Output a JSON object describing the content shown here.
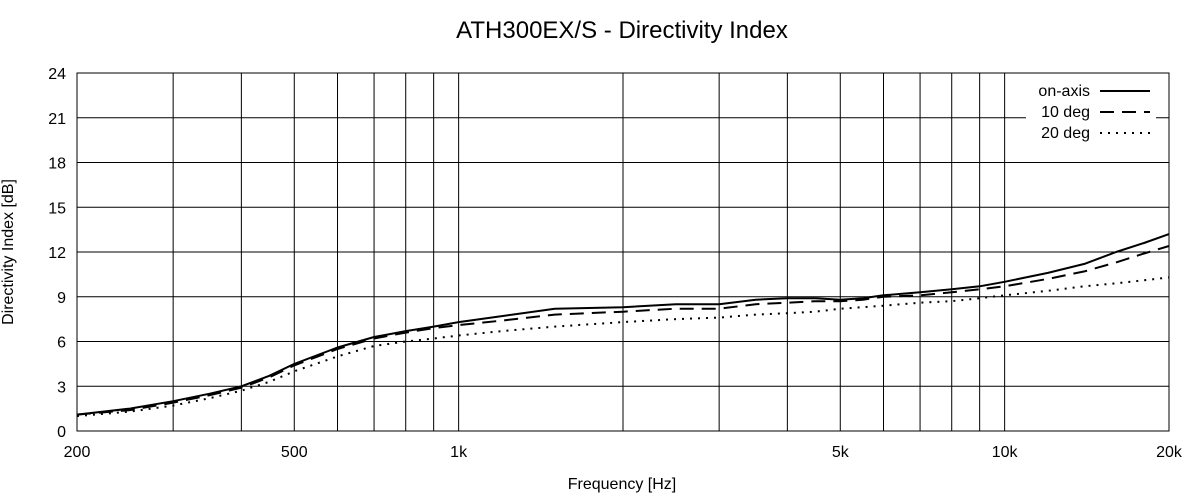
{
  "chart_data": {
    "type": "line",
    "title": "ATH300EX/S - Directivity Index",
    "xlabel": "Frequency [Hz]",
    "ylabel": "Directivity Index [dB]",
    "xscale": "log",
    "xlim": [
      200,
      20000
    ],
    "ylim": [
      0,
      24
    ],
    "grid": true,
    "legend_position": "top-right",
    "x_ticks": [
      {
        "value": 200,
        "label": "200"
      },
      {
        "value": 500,
        "label": "500"
      },
      {
        "value": 1000,
        "label": "1k"
      },
      {
        "value": 5000,
        "label": "5k"
      },
      {
        "value": 10000,
        "label": "10k"
      },
      {
        "value": 20000,
        "label": "20k"
      }
    ],
    "y_ticks": [
      {
        "value": 0,
        "label": "0"
      },
      {
        "value": 3,
        "label": "3"
      },
      {
        "value": 6,
        "label": "6"
      },
      {
        "value": 9,
        "label": "9"
      },
      {
        "value": 12,
        "label": "12"
      },
      {
        "value": 15,
        "label": "15"
      },
      {
        "value": 18,
        "label": "18"
      },
      {
        "value": 21,
        "label": "21"
      },
      {
        "value": 24,
        "label": "24"
      }
    ],
    "x_grid": [
      200,
      300,
      400,
      500,
      600,
      700,
      800,
      900,
      1000,
      2000,
      3000,
      4000,
      5000,
      6000,
      7000,
      8000,
      9000,
      10000,
      20000
    ],
    "x": [
      200,
      250,
      300,
      350,
      400,
      450,
      500,
      600,
      700,
      800,
      900,
      1000,
      1200,
      1500,
      2000,
      2500,
      3000,
      3500,
      4000,
      4500,
      5000,
      5500,
      6000,
      7000,
      8000,
      9000,
      10000,
      12000,
      14000,
      16000,
      18000,
      20000
    ],
    "series": [
      {
        "name": "on-axis",
        "style": "solid",
        "values": [
          1.1,
          1.5,
          2.0,
          2.5,
          3.0,
          3.7,
          4.5,
          5.6,
          6.3,
          6.7,
          7.0,
          7.3,
          7.7,
          8.2,
          8.3,
          8.5,
          8.5,
          8.8,
          8.9,
          8.9,
          8.8,
          8.9,
          9.1,
          9.3,
          9.5,
          9.7,
          10.0,
          10.6,
          11.2,
          12.0,
          12.6,
          13.2
        ]
      },
      {
        "name": "10 deg",
        "style": "dashed",
        "values": [
          1.1,
          1.4,
          1.9,
          2.4,
          2.9,
          3.6,
          4.4,
          5.5,
          6.2,
          6.6,
          6.9,
          7.1,
          7.4,
          7.8,
          8.0,
          8.2,
          8.2,
          8.5,
          8.6,
          8.7,
          8.7,
          8.8,
          9.0,
          9.1,
          9.3,
          9.5,
          9.7,
          10.2,
          10.7,
          11.3,
          11.9,
          12.4
        ]
      },
      {
        "name": "20 deg",
        "style": "dotted",
        "values": [
          1.0,
          1.3,
          1.7,
          2.2,
          2.7,
          3.3,
          4.0,
          5.0,
          5.7,
          6.0,
          6.2,
          6.4,
          6.7,
          7.0,
          7.3,
          7.5,
          7.6,
          7.8,
          7.9,
          8.0,
          8.2,
          8.3,
          8.4,
          8.6,
          8.7,
          8.9,
          9.1,
          9.4,
          9.7,
          9.9,
          10.1,
          10.3
        ]
      }
    ]
  }
}
